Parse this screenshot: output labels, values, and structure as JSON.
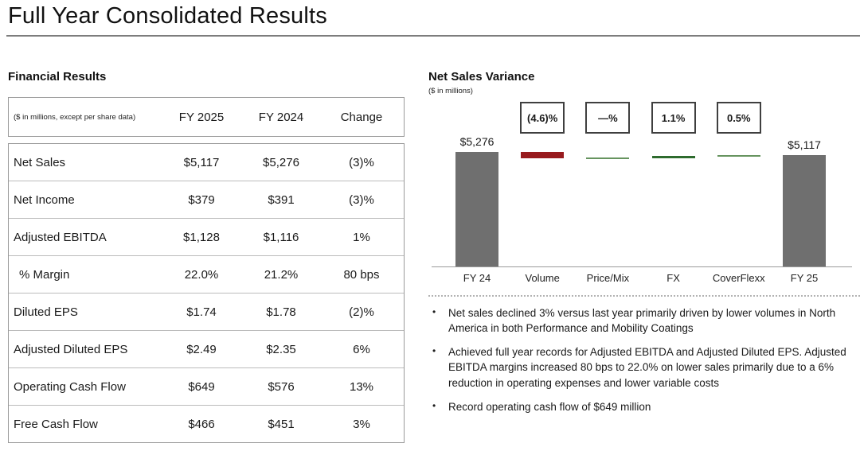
{
  "slide": {
    "title": "Full Year Consolidated Results"
  },
  "financial_results": {
    "heading": "Financial Results",
    "table": {
      "note": "($ in millions, except per share data)",
      "columns": [
        "FY 2025",
        "FY 2024",
        "Change"
      ],
      "rows": [
        {
          "label": "Net Sales",
          "values": [
            "$5,117",
            "$5,276",
            "(3)%"
          ],
          "indent": false
        },
        {
          "label": "Net Income",
          "values": [
            "$379",
            "$391",
            "(3)%"
          ],
          "indent": false
        },
        {
          "label": "Adjusted EBITDA",
          "values": [
            "$1,128",
            "$1,116",
            "1%"
          ],
          "indent": false
        },
        {
          "label": "% Margin",
          "values": [
            "22.0%",
            "21.2%",
            "80 bps"
          ],
          "indent": true
        },
        {
          "label": "Diluted EPS",
          "values": [
            "$1.74",
            "$1.78",
            "(2)%"
          ],
          "indent": false
        },
        {
          "label": "Adjusted Diluted EPS",
          "values": [
            "$2.49",
            "$2.35",
            "6%"
          ],
          "indent": false
        },
        {
          "label": "Operating Cash Flow",
          "values": [
            "$649",
            "$576",
            "13%"
          ],
          "indent": false
        },
        {
          "label": "Free Cash Flow",
          "values": [
            "$466",
            "$451",
            "3%"
          ],
          "indent": false
        }
      ]
    }
  },
  "net_sales_variance": {
    "heading": "Net Sales Variance",
    "units_note": "($ in millions)",
    "bullets": [
      "Net sales declined 3% versus last year primarily driven by lower volumes in North America in both Performance and Mobility Coatings",
      "Achieved full year records for Adjusted EBITDA and Adjusted Diluted EPS. Adjusted EBITDA margins increased 80 bps to 22.0% on lower sales primarily due to a 6% reduction in operating expenses and lower variable costs",
      "Record operating cash flow of $649 million"
    ]
  },
  "chart_data": {
    "type": "waterfall",
    "title": "Net Sales Variance",
    "units": "$ in millions",
    "ylim": [
      0,
      5276
    ],
    "grid": false,
    "columns": [
      {
        "label": "FY 24",
        "kind": "total",
        "value": 5276,
        "display_value": "$5,276",
        "color": "#6f6f6f"
      },
      {
        "label": "Volume",
        "kind": "delta",
        "start": 5276,
        "end": 5033,
        "box_label": "(4.6)%",
        "color": "#981b1e"
      },
      {
        "label": "Price/Mix",
        "kind": "delta",
        "start": 5033,
        "end": 5033,
        "box_label": "—%",
        "color": "#66945f"
      },
      {
        "label": "FX",
        "kind": "delta",
        "start": 5033,
        "end": 5091,
        "box_label": "1.1%",
        "color": "#2e6b2e"
      },
      {
        "label": "CoverFlexx",
        "kind": "delta",
        "start": 5091,
        "end": 5117,
        "box_label": "0.5%",
        "color": "#66945f"
      },
      {
        "label": "FY 25",
        "kind": "total",
        "value": 5117,
        "display_value": "$5,117",
        "color": "#6f6f6f"
      }
    ]
  },
  "colors": {
    "total_bar_gray": "#6f6f6f",
    "negative_red": "#981b1e",
    "positive_green_dark": "#2e6b2e",
    "positive_green_light": "#66945f",
    "box_border": "#3f3f3f",
    "title_rule": "#7d7d7d"
  }
}
